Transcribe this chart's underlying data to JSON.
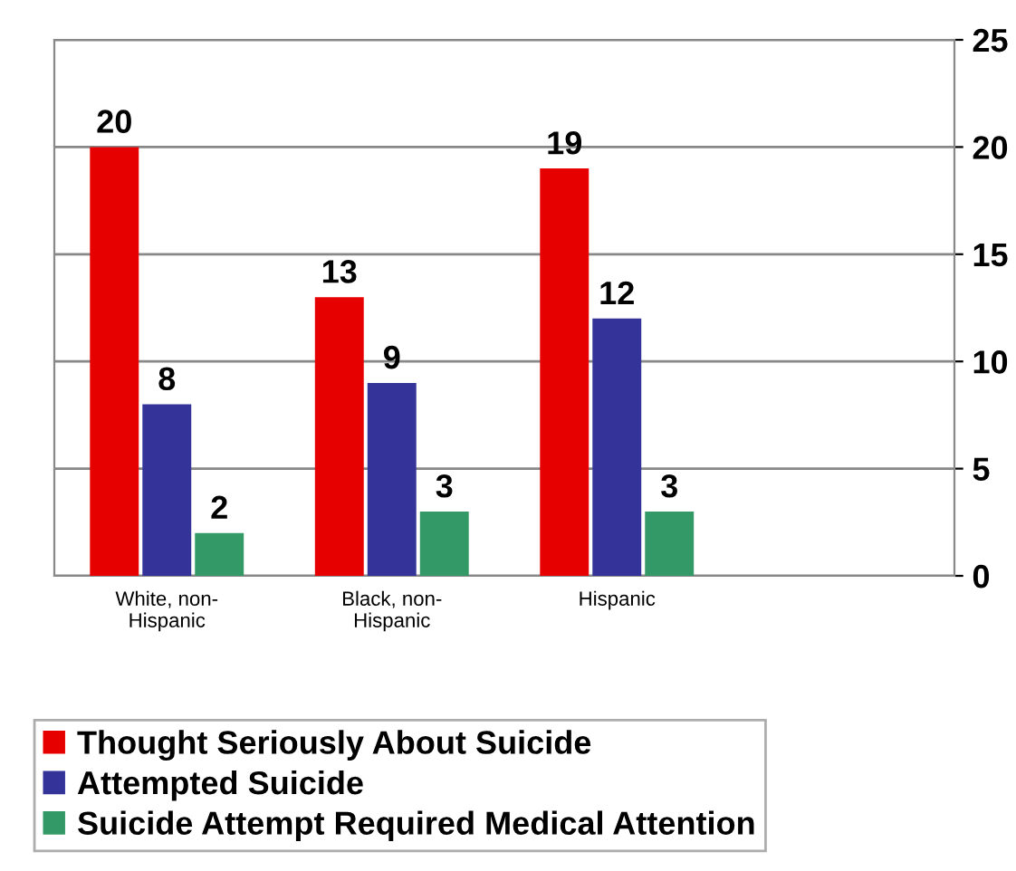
{
  "chart_data": {
    "type": "bar",
    "categories": [
      "White, non-\nHispanic",
      "Black, non-\nHispanic",
      "Hispanic",
      null
    ],
    "series": [
      {
        "name": "Thought Seriously About Suicide",
        "color": "#e60000",
        "values": [
          20,
          13,
          19,
          null
        ]
      },
      {
        "name": "Attempted Suicide",
        "color": "#333399",
        "values": [
          8,
          9,
          12,
          null
        ]
      },
      {
        "name": "Suicide Attempt Required Medical Attention",
        "color": "#339966",
        "values": [
          2,
          3,
          3,
          null
        ]
      }
    ],
    "ylim": [
      0,
      25
    ],
    "yticks": [
      0,
      5,
      10,
      15,
      20,
      25
    ],
    "grid": "y",
    "legend": "bottom",
    "data_labels": true
  }
}
